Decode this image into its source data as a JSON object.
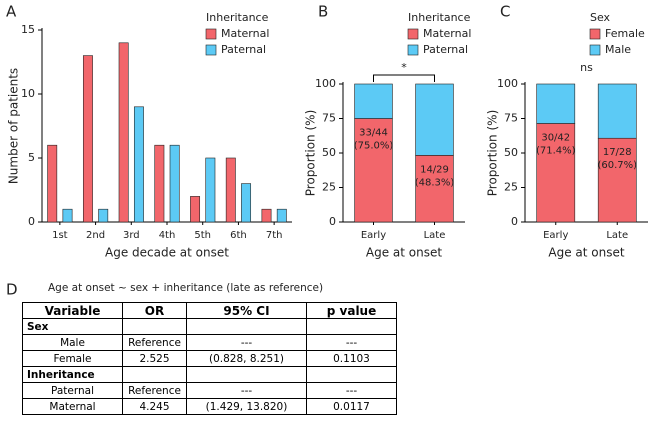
{
  "chart_data": [
    {
      "panel": "A",
      "type": "bar",
      "xlabel": "Age decade at onset",
      "ylabel": "Number of patients",
      "legend_title": "Inheritance",
      "legend": "upper right",
      "categories": [
        "1st",
        "2nd",
        "3rd",
        "4th",
        "5th",
        "6th",
        "7th"
      ],
      "series": [
        {
          "name": "Maternal",
          "color": "#f2666b",
          "values": [
            6,
            13,
            14,
            6,
            2,
            5,
            1
          ]
        },
        {
          "name": "Paternal",
          "color": "#5ccaf5",
          "values": [
            1,
            1,
            9,
            6,
            5,
            3,
            1
          ]
        }
      ],
      "ylim": [
        0,
        15
      ],
      "yticks": [
        0,
        5,
        10,
        15
      ]
    },
    {
      "panel": "B",
      "type": "stacked_bar",
      "xlabel": "Age at onset",
      "ylabel": "Proportion (%)",
      "legend_title": "Inheritance",
      "legend": "upper right",
      "categories": [
        "Early",
        "Late"
      ],
      "series": [
        {
          "name": "Maternal",
          "color": "#f2666b",
          "values": [
            75.0,
            48.3
          ],
          "value_labels": [
            [
              "33/44",
              "(75.0%)"
            ],
            [
              "14/29",
              "(48.3%)"
            ]
          ]
        },
        {
          "name": "Paternal",
          "color": "#5ccaf5",
          "values": [
            25.0,
            51.7
          ]
        }
      ],
      "ylim": [
        0,
        100
      ],
      "yticks": [
        0,
        25,
        50,
        75,
        100
      ],
      "annotation": "*",
      "significance_bracket": true
    },
    {
      "panel": "C",
      "type": "stacked_bar",
      "xlabel": "Age at onset",
      "ylabel": "Proportion (%)",
      "legend_title": "Sex",
      "legend": "upper right",
      "categories": [
        "Early",
        "Late"
      ],
      "series": [
        {
          "name": "Female",
          "color": "#f2666b",
          "values": [
            71.4,
            60.7
          ],
          "value_labels": [
            [
              "30/42",
              "(71.4%)"
            ],
            [
              "17/28",
              "(60.7%)"
            ]
          ]
        },
        {
          "name": "Male",
          "color": "#5ccaf5",
          "values": [
            28.6,
            39.3
          ]
        }
      ],
      "ylim": [
        0,
        100
      ],
      "yticks": [
        0,
        25,
        50,
        75,
        100
      ],
      "annotation": "ns",
      "significance_bracket": false
    }
  ],
  "table": {
    "panel": "D",
    "title": "Age at onset ~ sex + inheritance (late as reference)",
    "headers": [
      "Variable",
      "OR",
      "95% CI",
      "p value"
    ],
    "sections": [
      {
        "label": "Sex",
        "rows": [
          [
            "Male",
            "Reference",
            "---",
            "---"
          ],
          [
            "Female",
            "2.525",
            "(0.828, 8.251)",
            "0.1103"
          ]
        ]
      },
      {
        "label": "Inheritance",
        "rows": [
          [
            "Paternal",
            "Reference",
            "---",
            "---"
          ],
          [
            "Maternal",
            "4.245",
            "(1.429, 13.820)",
            "0.0117"
          ]
        ]
      }
    ]
  }
}
